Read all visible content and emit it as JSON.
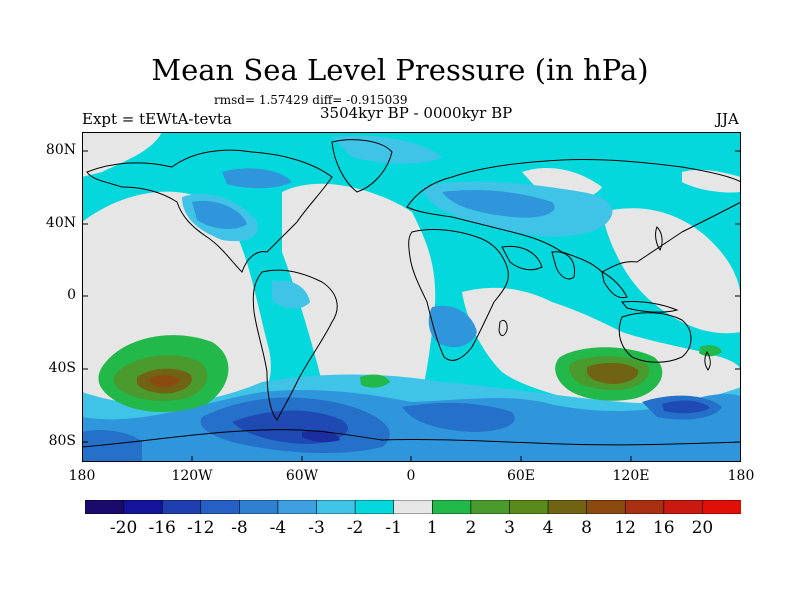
{
  "title": "Mean Sea Level Pressure (in hPa)",
  "stats": "rmsd= 1.57429 diff= -0.915039",
  "experiment": "Expt = tEWtA-tevta",
  "period": "3504kyr BP - 0000kyr BP",
  "season": "JJA",
  "axes": {
    "y_ticks": [
      "80N",
      "40N",
      "0",
      "40S",
      "80S"
    ],
    "x_ticks": [
      "180",
      "120W",
      "60W",
      "0",
      "60E",
      "120E",
      "180"
    ]
  },
  "colorbar": {
    "labels": [
      "-20",
      "-16",
      "-12",
      "-8",
      "-4",
      "-3",
      "-2",
      "-1",
      "1",
      "2",
      "3",
      "4",
      "8",
      "12",
      "16",
      "20"
    ],
    "colors": [
      "#1a0a6b",
      "#14149a",
      "#1f3fb0",
      "#2560c4",
      "#2f80d0",
      "#3ea0e0",
      "#3fc4e8",
      "#05d8dc",
      "#e6e6e6",
      "#22b84a",
      "#4a9a2e",
      "#5a8a1c",
      "#706414",
      "#8a4a10",
      "#a83010",
      "#c81a10",
      "#e01008"
    ]
  },
  "map_colors": {
    "neutral": "#e6e6e6",
    "weak_neg": "#05d8dc",
    "neg2": "#3fc4e8",
    "neg3": "#2f96dc",
    "neg4": "#2570c8",
    "neg8": "#1f4ab4",
    "neg12": "#1a2ea0",
    "pos1": "#22b84a",
    "pos2": "#4a9a2e",
    "pos3": "#706414",
    "pos4": "#8a4a10",
    "coast": "#000000"
  }
}
